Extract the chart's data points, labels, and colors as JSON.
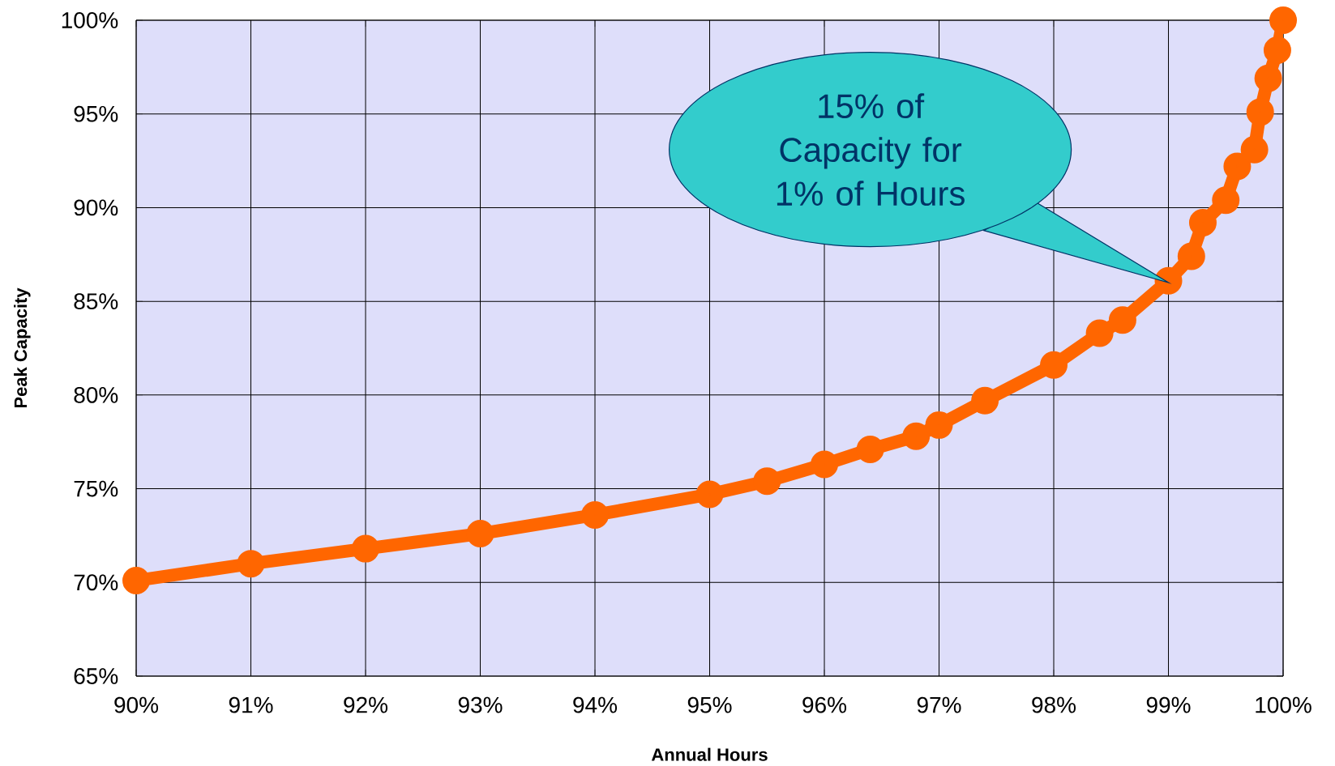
{
  "chart_data": {
    "type": "line",
    "xlabel": "Annual Hours",
    "ylabel": "Peak Capacity",
    "x": [
      90,
      91,
      92,
      93,
      94,
      95,
      95.5,
      96,
      96.4,
      96.8,
      97,
      97.4,
      98,
      98.4,
      98.6,
      99,
      99.2,
      99.3,
      99.5,
      99.6,
      99.75,
      99.8,
      99.87,
      99.95,
      100
    ],
    "series": [
      {
        "color": "#ff6600",
        "values": [
          70.1,
          71.0,
          71.8,
          72.6,
          73.6,
          74.7,
          75.4,
          76.3,
          77.1,
          77.8,
          78.4,
          79.7,
          81.6,
          83.3,
          84.0,
          86.1,
          87.4,
          89.2,
          90.4,
          92.2,
          93.1,
          95.1,
          96.9,
          98.4,
          100
        ]
      }
    ],
    "xlim": [
      90,
      100
    ],
    "ylim": [
      65,
      100
    ],
    "xticks": [
      {
        "value": 90,
        "label": "90%"
      },
      {
        "value": 91,
        "label": "91%"
      },
      {
        "value": 92,
        "label": "92%"
      },
      {
        "value": 93,
        "label": "93%"
      },
      {
        "value": 94,
        "label": "94%"
      },
      {
        "value": 95,
        "label": "95%"
      },
      {
        "value": 96,
        "label": "96%"
      },
      {
        "value": 97,
        "label": "97%"
      },
      {
        "value": 98,
        "label": "98%"
      },
      {
        "value": 99,
        "label": "99%"
      },
      {
        "value": 100,
        "label": "100%"
      }
    ],
    "yticks": [
      {
        "value": 65,
        "label": "65%"
      },
      {
        "value": 70,
        "label": "70%"
      },
      {
        "value": 75,
        "label": "75%"
      },
      {
        "value": 80,
        "label": "80%"
      },
      {
        "value": 85,
        "label": "85%"
      },
      {
        "value": 90,
        "label": "90%"
      },
      {
        "value": 95,
        "label": "95%"
      },
      {
        "value": 100,
        "label": "100%"
      }
    ],
    "annotations": [
      {
        "text": "15% of Capacity for 1% of Hours",
        "x": 99,
        "y": 86
      }
    ],
    "grid": true,
    "marker": "circle",
    "line_style": "solid"
  }
}
